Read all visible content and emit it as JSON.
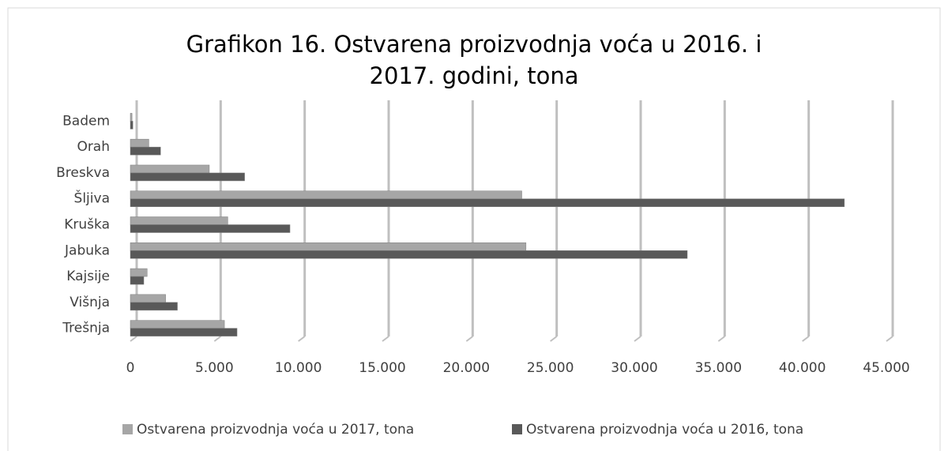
{
  "chart_data": {
    "type": "hbar",
    "title": "Grafikon 16. Ostvarena proizvodnja voća u 2016. i 2017. godini, tona",
    "categories": [
      "Badem",
      "Orah",
      "Breskva",
      "Šljiva",
      "Kruška",
      "Jabuka",
      "Kajsije",
      "Višnja",
      "Trešnja"
    ],
    "series": [
      {
        "name": "Ostvarena proizvodnja voća u  2017, tona",
        "color": "#a6a6a6",
        "values": [
          100,
          1100,
          4700,
          23300,
          5800,
          23550,
          1000,
          2100,
          5600
        ]
      },
      {
        "name": "Ostvarena proizvodnja voća u  2016, tona",
        "color": "#595959",
        "values": [
          150,
          1800,
          6800,
          42500,
          9500,
          33150,
          800,
          2800,
          6350
        ]
      }
    ],
    "xlim": [
      0,
      45000
    ],
    "xticks": [
      0,
      {
        "value": 5000,
        "label": "5.000"
      },
      {
        "value": 10000,
        "label": "10.000"
      },
      {
        "value": 15000,
        "label": "15.000"
      },
      {
        "value": 20000,
        "label": "20.000"
      },
      {
        "value": 25000,
        "label": "25.000"
      },
      {
        "value": 30000,
        "label": "30.000"
      },
      {
        "value": 35000,
        "label": "35.000"
      },
      {
        "value": 40000,
        "label": "40.000"
      },
      {
        "value": 45000,
        "label": "45.000"
      }
    ],
    "grid": true,
    "legend": "bottom"
  }
}
